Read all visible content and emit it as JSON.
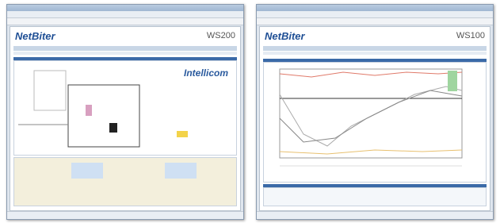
{
  "windows": [
    {
      "brand": "NetBiter",
      "model": "WS200",
      "logo": "Intellicom"
    },
    {
      "brand": "NetBiter",
      "model": "WS100"
    }
  ]
}
